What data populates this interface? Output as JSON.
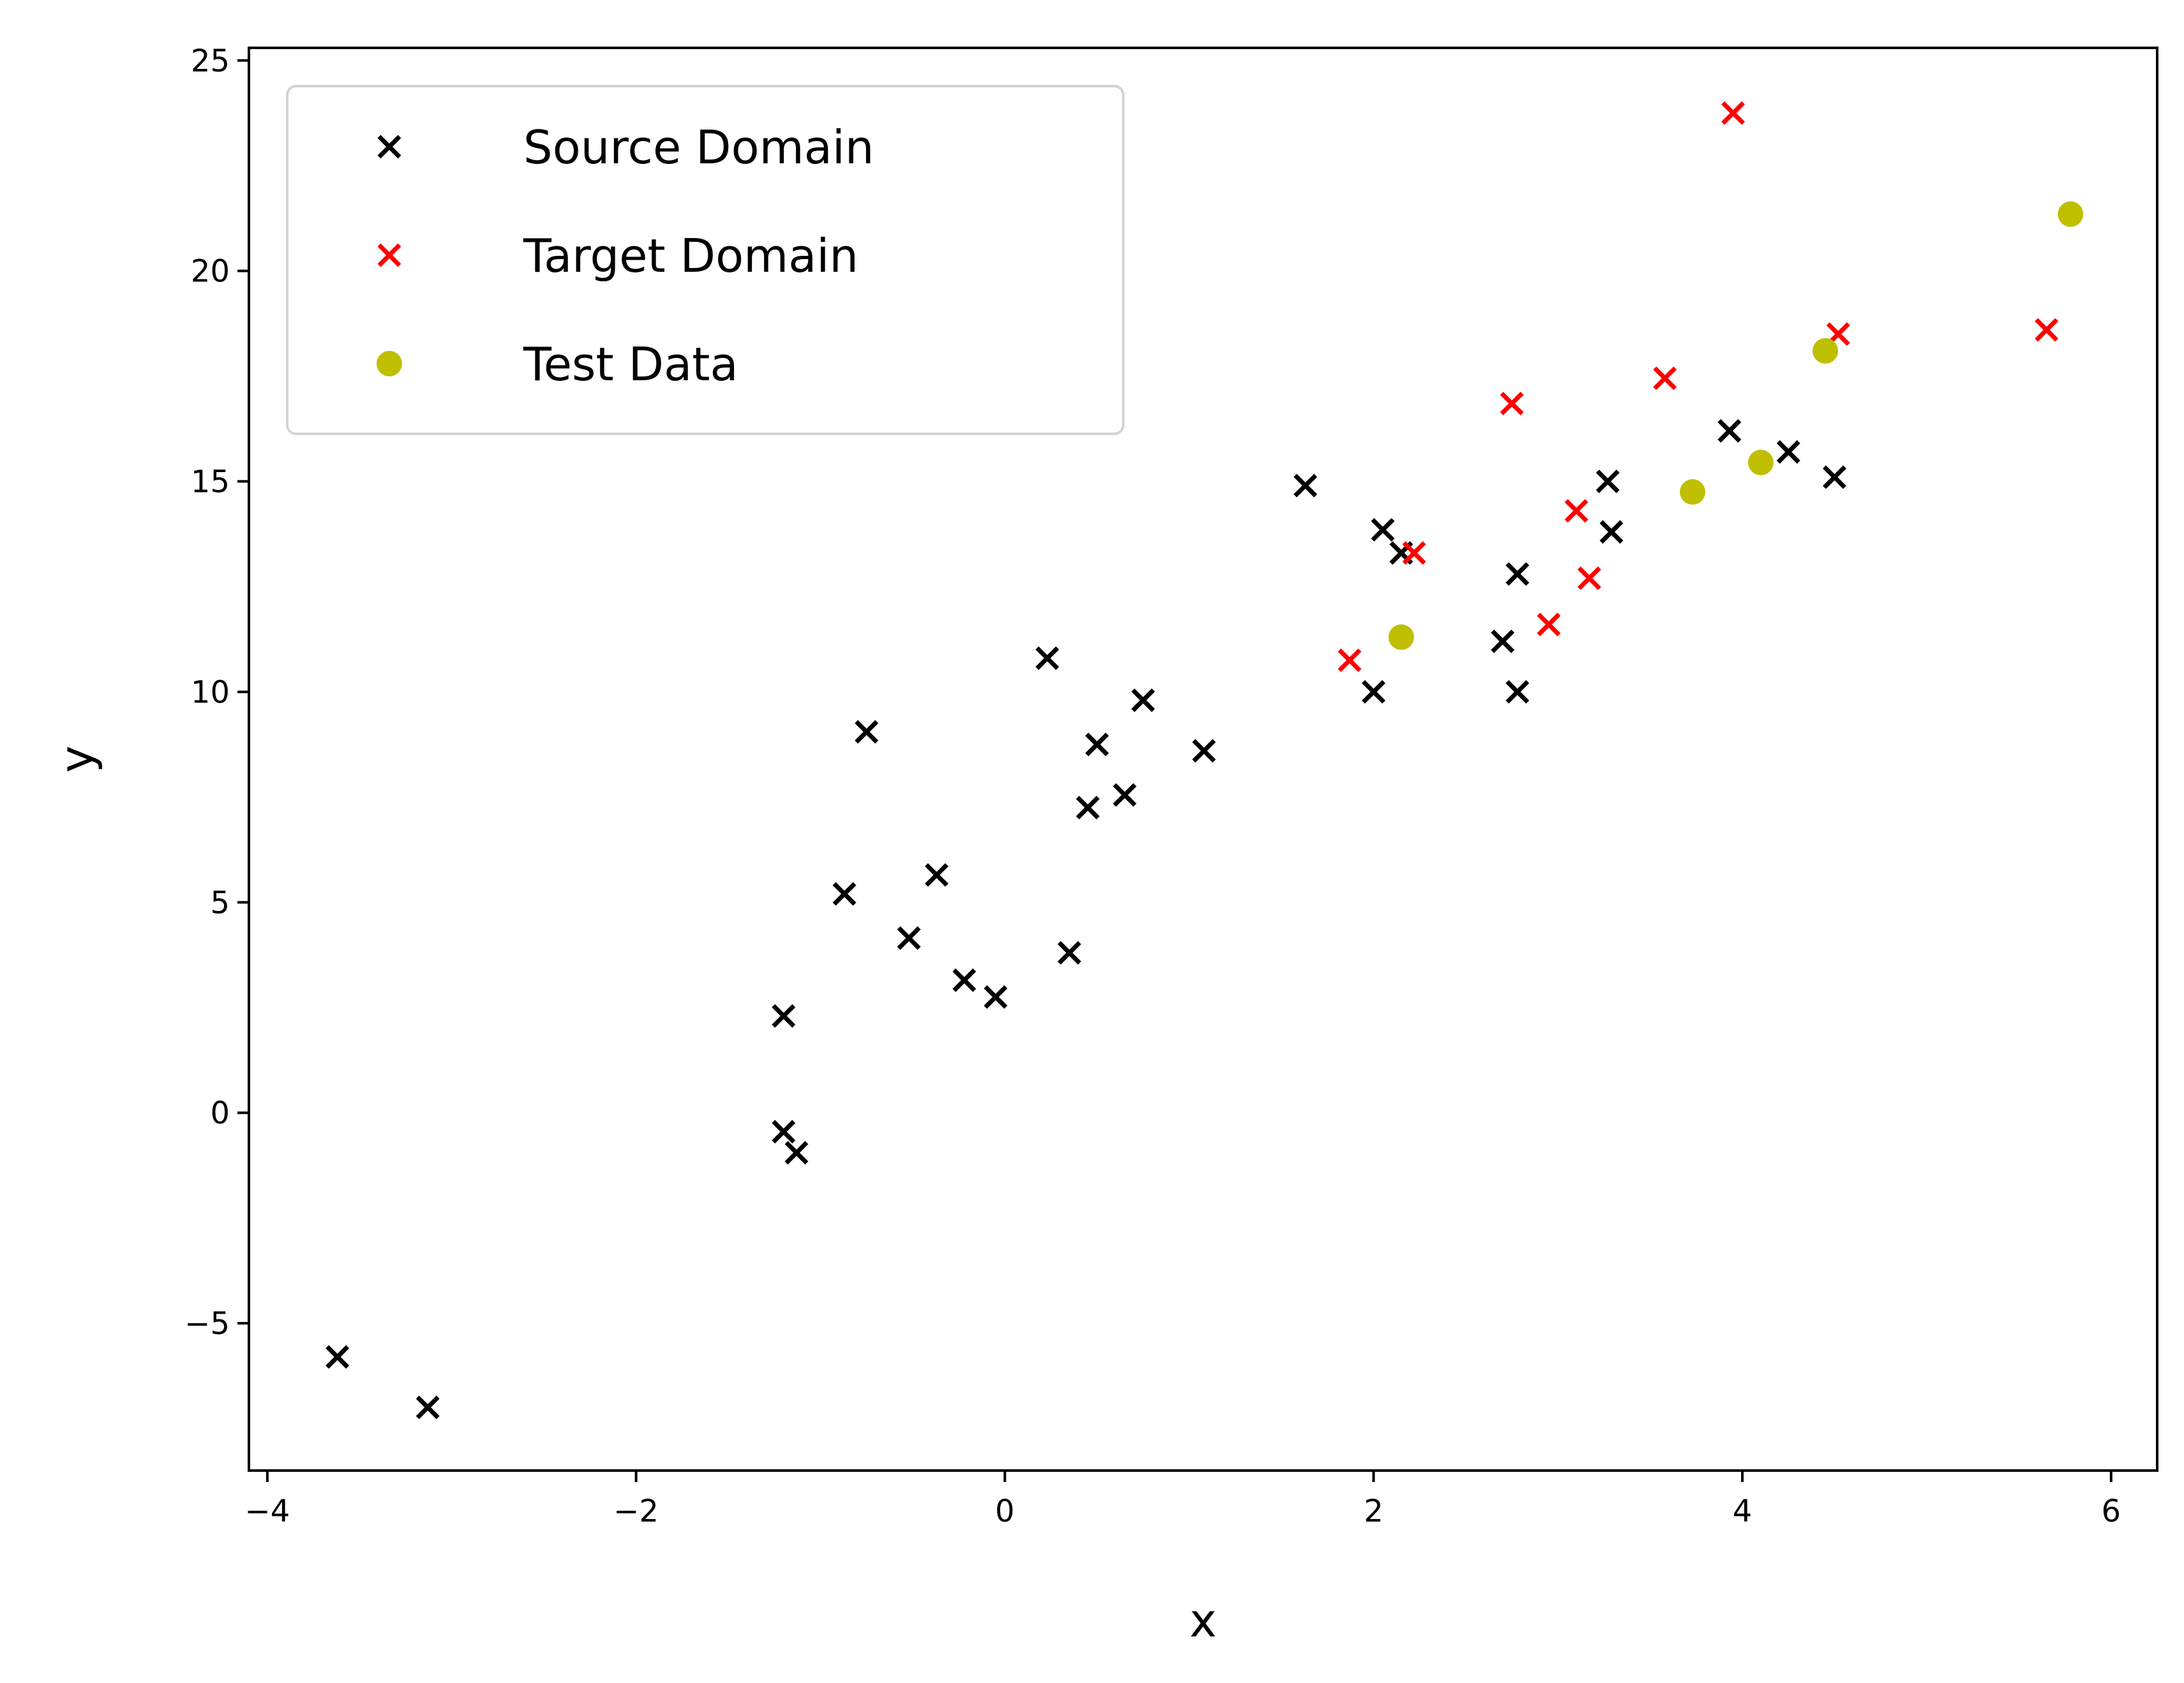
{
  "chart_data": {
    "type": "scatter",
    "title": "",
    "xlabel": "x",
    "ylabel": "y",
    "xlim": [
      -4.1,
      6.25
    ],
    "ylim": [
      -8.5,
      25.3
    ],
    "xticks": [
      -4,
      -2,
      0,
      2,
      4,
      6
    ],
    "xtick_labels": [
      "−4",
      "−2",
      "0",
      "2",
      "4",
      "6"
    ],
    "yticks": [
      -5,
      0,
      5,
      10,
      15,
      20,
      25
    ],
    "ytick_labels": [
      "−5",
      "0",
      "5",
      "10",
      "15",
      "20",
      "25"
    ],
    "grid": false,
    "legend_position": "top-left",
    "series": [
      {
        "name": "Source Domain",
        "marker": "x",
        "color": "#000000",
        "points": [
          [
            -3.62,
            -5.8
          ],
          [
            -3.13,
            -7.0
          ],
          [
            -1.2,
            2.3
          ],
          [
            -1.2,
            -0.45
          ],
          [
            -1.13,
            -0.95
          ],
          [
            -0.87,
            5.2
          ],
          [
            -0.75,
            9.05
          ],
          [
            -0.52,
            4.15
          ],
          [
            -0.37,
            5.65
          ],
          [
            -0.22,
            3.15
          ],
          [
            -0.05,
            2.75
          ],
          [
            0.23,
            10.8
          ],
          [
            0.35,
            3.8
          ],
          [
            0.45,
            7.25
          ],
          [
            0.5,
            8.75
          ],
          [
            0.65,
            7.55
          ],
          [
            0.75,
            9.8
          ],
          [
            1.08,
            8.6
          ],
          [
            1.63,
            14.9
          ],
          [
            2.0,
            10.0
          ],
          [
            2.05,
            13.85
          ],
          [
            2.15,
            13.3
          ],
          [
            2.7,
            11.2
          ],
          [
            2.78,
            12.8
          ],
          [
            2.78,
            10.0
          ],
          [
            3.27,
            15.0
          ],
          [
            3.29,
            13.8
          ],
          [
            3.93,
            16.2
          ],
          [
            4.25,
            15.7
          ],
          [
            4.5,
            15.1
          ]
        ]
      },
      {
        "name": "Target Domain",
        "marker": "x",
        "color": "#ff0000",
        "points": [
          [
            1.87,
            10.75
          ],
          [
            2.22,
            13.3
          ],
          [
            2.75,
            16.85
          ],
          [
            2.95,
            11.6
          ],
          [
            3.1,
            14.3
          ],
          [
            3.17,
            12.7
          ],
          [
            3.58,
            17.45
          ],
          [
            3.95,
            23.75
          ],
          [
            4.52,
            18.5
          ],
          [
            5.65,
            18.6
          ]
        ]
      },
      {
        "name": "Test Data",
        "marker": "o",
        "color": "#bfbf00",
        "points": [
          [
            2.15,
            11.3
          ],
          [
            3.73,
            14.75
          ],
          [
            4.1,
            15.45
          ],
          [
            4.45,
            18.1
          ],
          [
            5.78,
            21.35
          ]
        ]
      }
    ]
  }
}
